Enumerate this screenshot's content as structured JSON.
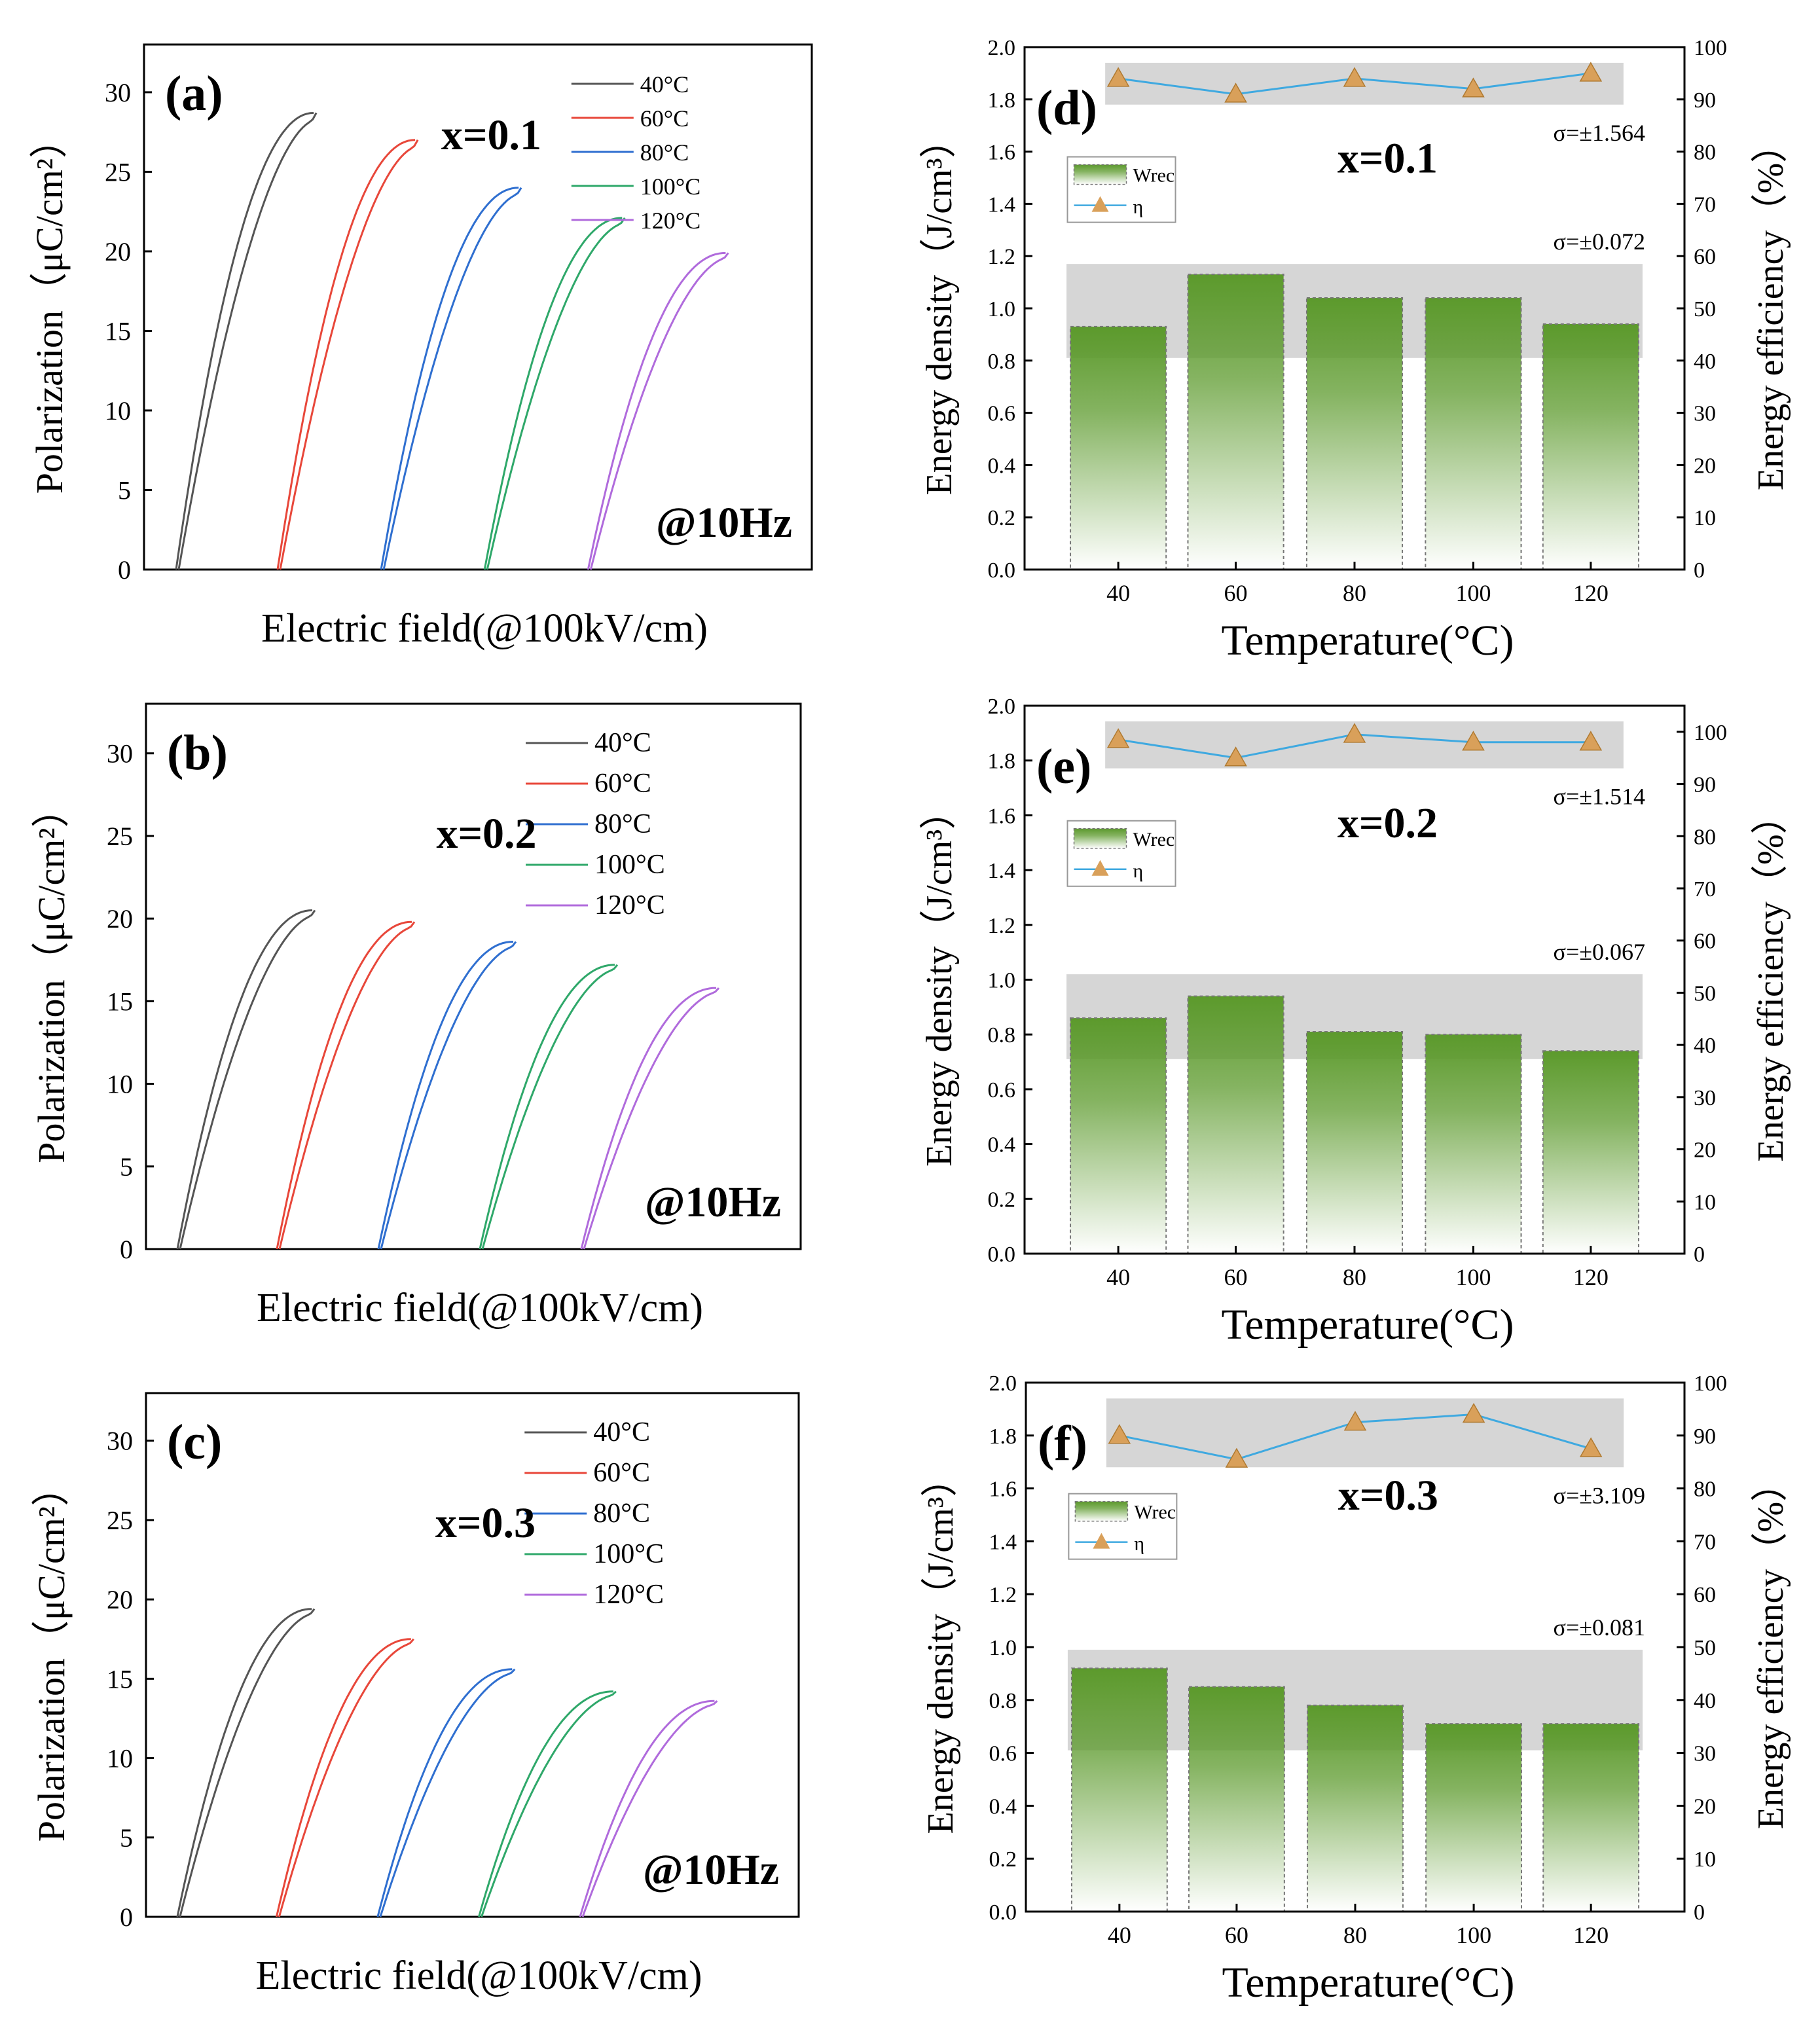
{
  "figure": {
    "colors": {
      "c40": "#555555",
      "c60": "#e8473a",
      "c80": "#2f6fd0",
      "c100": "#2fa86a",
      "c120": "#b06bdc",
      "bar_top": "#5c9a2c",
      "marker": "#d9a05a",
      "eta_line": "#3fa9e0",
      "shade": "#c8c8c8"
    },
    "temperatures": [
      "40°C",
      "60°C",
      "80°C",
      "100°C",
      "120°C"
    ]
  },
  "chart_data": [
    {
      "panel": "(a)",
      "type": "line",
      "composition": "x=0.1",
      "frequency": "@10Hz",
      "xlabel": "Electric field(@100kV/cm)",
      "ylabel": "Polarization（μC/cm²）",
      "ylim": [
        0,
        33
      ],
      "yticks": [
        0,
        5,
        10,
        15,
        20,
        25,
        30
      ],
      "legend_position": "top-right",
      "series": [
        {
          "name": "40°C",
          "pmax": 28.7
        },
        {
          "name": "60°C",
          "pmax": 27.0
        },
        {
          "name": "80°C",
          "pmax": 24.0
        },
        {
          "name": "100°C",
          "pmax": 22.1
        },
        {
          "name": "120°C",
          "pmax": 19.9
        }
      ]
    },
    {
      "panel": "(b)",
      "type": "line",
      "composition": "x=0.2",
      "frequency": "@10Hz",
      "xlabel": "Electric field(@100kV/cm)",
      "ylabel": "Polarization（μC/cm²）",
      "ylim": [
        0,
        33
      ],
      "yticks": [
        0,
        5,
        10,
        15,
        20,
        25,
        30
      ],
      "legend_position": "top-right",
      "series": [
        {
          "name": "40°C",
          "pmax": 20.5
        },
        {
          "name": "60°C",
          "pmax": 19.8
        },
        {
          "name": "80°C",
          "pmax": 18.6
        },
        {
          "name": "100°C",
          "pmax": 17.2
        },
        {
          "name": "120°C",
          "pmax": 15.8
        }
      ]
    },
    {
      "panel": "(c)",
      "type": "line",
      "composition": "x=0.3",
      "frequency": "@10Hz",
      "xlabel": "Electric field(@100kV/cm)",
      "ylabel": "Polarization（μC/cm²）",
      "ylim": [
        0,
        33
      ],
      "yticks": [
        0,
        5,
        10,
        15,
        20,
        25,
        30
      ],
      "legend_position": "top-right",
      "series": [
        {
          "name": "40°C",
          "pmax": 19.4
        },
        {
          "name": "60°C",
          "pmax": 17.5
        },
        {
          "name": "80°C",
          "pmax": 15.6
        },
        {
          "name": "100°C",
          "pmax": 14.2
        },
        {
          "name": "120°C",
          "pmax": 13.6
        }
      ]
    },
    {
      "panel": "(d)",
      "type": "bar",
      "composition": "x=0.1",
      "categories": [
        "40",
        "60",
        "80",
        "100",
        "120"
      ],
      "xlabel": "Temperature(°C)",
      "ylabel_left": "Energy density（J/cm³）",
      "ylabel_right": "Energy efficiency（%）",
      "ylim": [
        0,
        2.0
      ],
      "y2lim": [
        0,
        100
      ],
      "legend": [
        "Wrec",
        "η"
      ],
      "wrec": [
        0.93,
        1.13,
        1.04,
        1.04,
        0.94
      ],
      "eta": [
        94,
        91,
        94,
        92,
        95
      ],
      "sigma_eta": "σ=±1.564",
      "sigma_wrec": "σ=±0.072",
      "wrec_band": [
        0.81,
        1.17
      ],
      "eta_band": [
        89,
        97
      ]
    },
    {
      "panel": "(e)",
      "type": "bar",
      "composition": "x=0.2",
      "categories": [
        "40",
        "60",
        "80",
        "100",
        "120"
      ],
      "xlabel": "Temperature(°C)",
      "ylabel_left": "Energy density（J/cm³）",
      "ylabel_right": "Energy efficiency（%）",
      "ylim": [
        0,
        2.0
      ],
      "y2lim": [
        0,
        105
      ],
      "legend": [
        "Wrec",
        "η"
      ],
      "wrec": [
        0.86,
        0.94,
        0.81,
        0.8,
        0.74
      ],
      "eta": [
        98.5,
        95,
        99.5,
        98,
        98
      ],
      "sigma_eta": "σ=±1.514",
      "sigma_wrec": "σ=±0.067",
      "wrec_band": [
        0.71,
        1.02
      ],
      "eta_band": [
        93,
        102
      ]
    },
    {
      "panel": "(f)",
      "type": "bar",
      "composition": "x=0.3",
      "categories": [
        "40",
        "60",
        "80",
        "100",
        "120"
      ],
      "xlabel": "Temperature(°C)",
      "ylabel_left": "Energy density（J/cm³）",
      "ylabel_right": "Energy efficiency（%）",
      "ylim": [
        0,
        2.0
      ],
      "y2lim": [
        0,
        100
      ],
      "legend": [
        "Wrec",
        "η"
      ],
      "wrec": [
        0.92,
        0.85,
        0.78,
        0.71,
        0.71
      ],
      "eta": [
        90,
        85.5,
        92.5,
        94,
        87.5
      ],
      "sigma_eta": "σ=±3.109",
      "sigma_wrec": "σ=±0.081",
      "wrec_band": [
        0.61,
        0.99
      ],
      "eta_band": [
        84,
        97
      ]
    }
  ]
}
